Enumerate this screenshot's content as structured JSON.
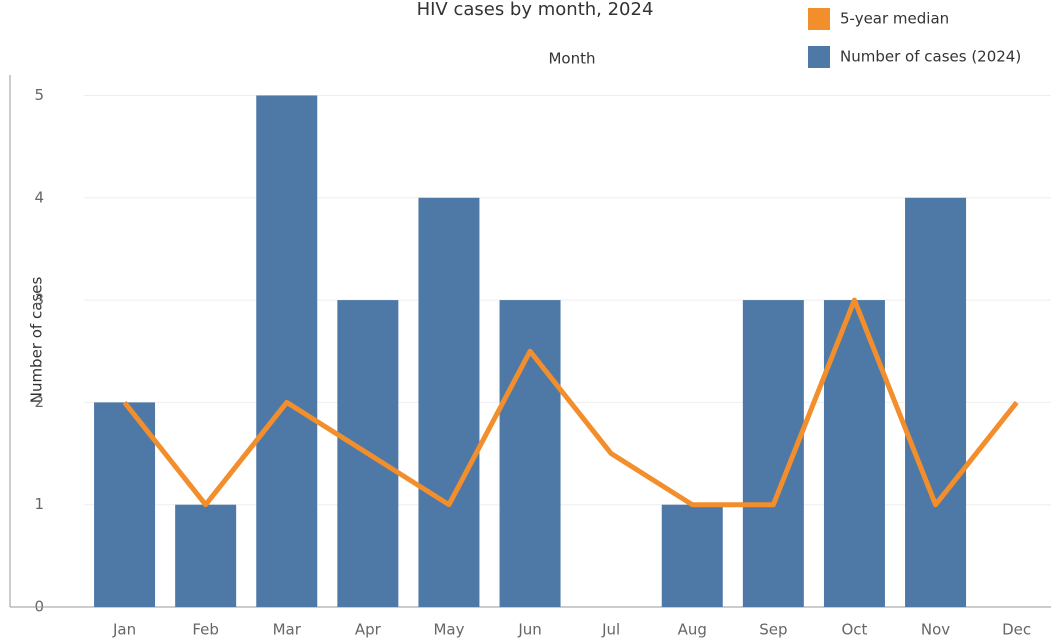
{
  "chart_data": {
    "type": "bar",
    "title": "HIV cases by month, 2024",
    "x_label": "Month",
    "y_label": "Number of cases",
    "categories": [
      "Jan",
      "Feb",
      "Mar",
      "Apr",
      "May",
      "Jun",
      "Jul",
      "Aug",
      "Sep",
      "Oct",
      "Nov",
      "Dec"
    ],
    "series": [
      {
        "name": "Number of cases (2024)",
        "color": "#4e79a7",
        "type": "bar",
        "values": [
          2,
          1,
          5,
          3,
          4,
          3,
          0,
          1,
          3,
          3,
          4,
          0
        ]
      },
      {
        "name": "5-year median",
        "color": "#f28e2b",
        "type": "line",
        "values": [
          2,
          1,
          2,
          1.5,
          1,
          2.5,
          1.5,
          1,
          1,
          3,
          1,
          2
        ]
      }
    ],
    "ylim": [
      0,
      5.2
    ],
    "yticks": [
      0,
      1,
      2,
      3,
      4,
      5
    ],
    "grid": true
  }
}
